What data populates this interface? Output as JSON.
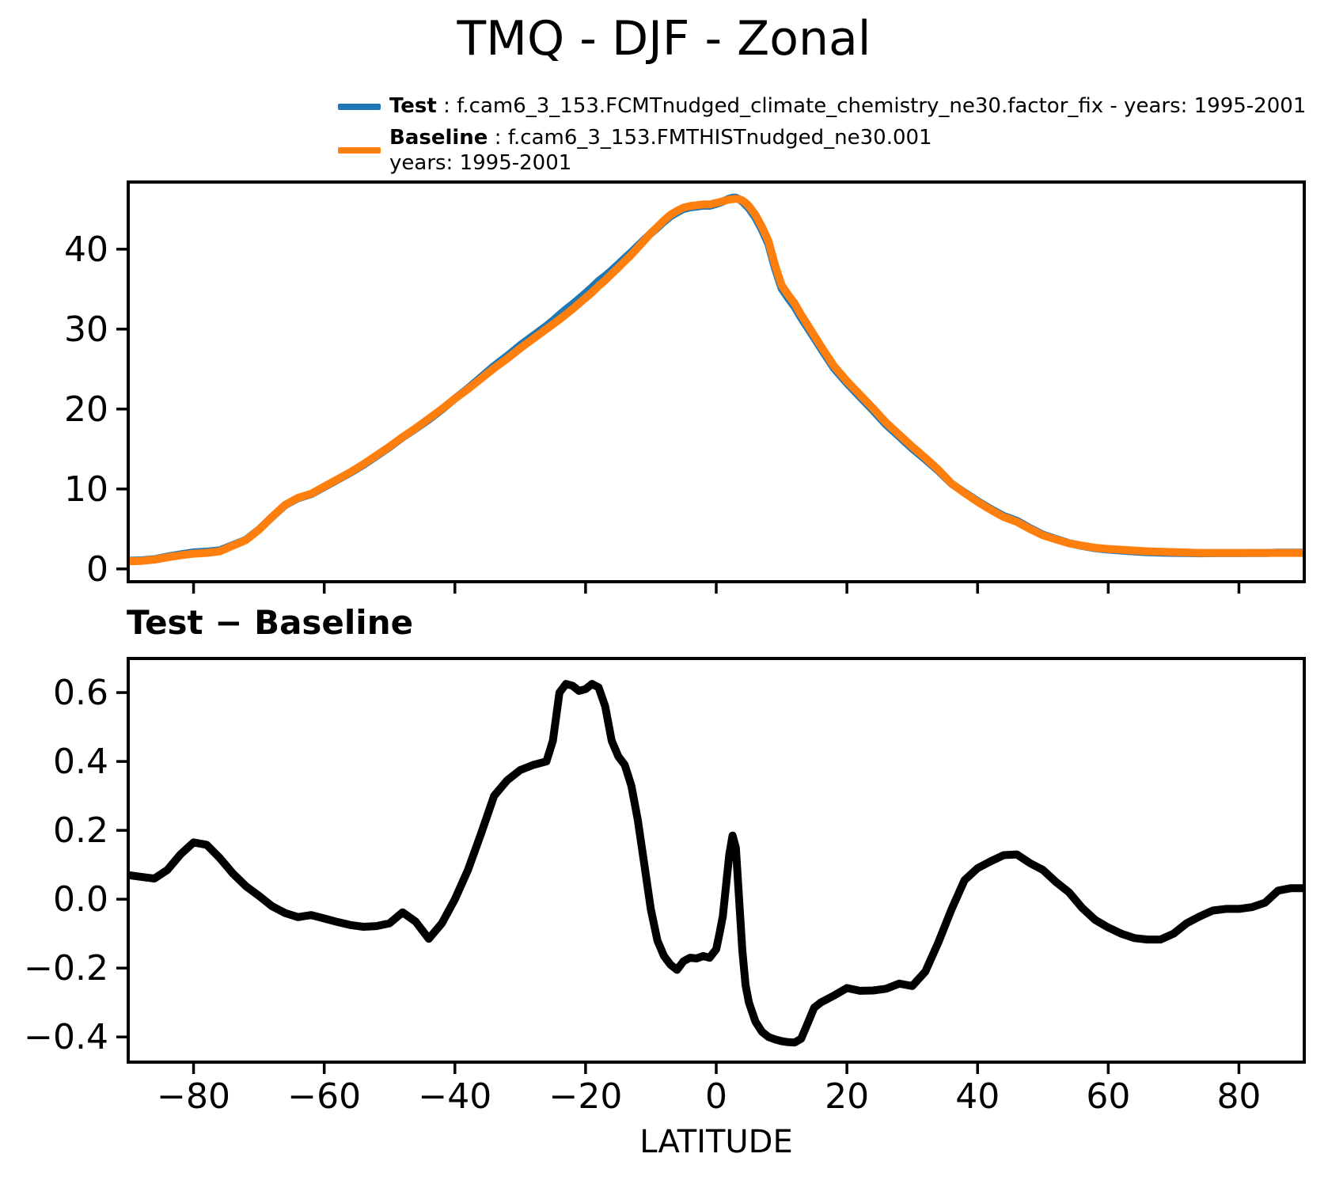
{
  "title": "TMQ - DJF - Zonal",
  "legend": {
    "test": {
      "name": "Test",
      "desc": ": f.cam6_3_153.FCMTnudged_climate_chemistry_ne30.factor_fix - years: 1995-2001",
      "color": "#1f77b4"
    },
    "baseline": {
      "name": "Baseline",
      "desc": ": f.cam6_3_153.FMTHISTnudged_ne30.001",
      "desc2": "years: 1995-2001",
      "color": "#ff7f0e"
    }
  },
  "chart_data": [
    {
      "type": "line",
      "title": "TMQ - DJF - Zonal",
      "ylabel": "",
      "xlabel": "",
      "xlim": [
        -90,
        90
      ],
      "ylim": [
        -1.6,
        48.4
      ],
      "xticks": [
        -80,
        -60,
        -40,
        -20,
        0,
        20,
        40,
        60,
        80
      ],
      "xtick_labels": [
        "−80",
        "−60",
        "−40",
        "−20",
        "0",
        "20",
        "40",
        "60",
        "80"
      ],
      "show_xtick_labels": false,
      "yticks": [
        0,
        10,
        20,
        30,
        40
      ],
      "ytick_labels": [
        "0",
        "10",
        "20",
        "30",
        "40"
      ],
      "grid": false,
      "legend_position": "above-top-center",
      "x": [
        -90,
        -88,
        -86,
        -84,
        -82,
        -80,
        -78,
        -76,
        -74,
        -72,
        -70,
        -68,
        -66,
        -64,
        -62,
        -60,
        -58,
        -56,
        -54,
        -52,
        -50,
        -48,
        -46,
        -44,
        -42,
        -40,
        -38,
        -36,
        -34,
        -32,
        -30,
        -28,
        -26,
        -25,
        -24,
        -23,
        -22,
        -21,
        -20,
        -19,
        -18,
        -17,
        -16,
        -15,
        -14,
        -13,
        -12,
        -11,
        -10,
        -9,
        -8,
        -7,
        -6,
        -5,
        -4,
        -3,
        -2,
        -1,
        0,
        0.5,
        1,
        1.5,
        2,
        2.5,
        3,
        3.5,
        4,
        4.5,
        5,
        6,
        7,
        8,
        9,
        10,
        11,
        12,
        13,
        14,
        15,
        16,
        18,
        20,
        22,
        24,
        26,
        28,
        30,
        32,
        34,
        36,
        38,
        40,
        42,
        44,
        46,
        48,
        50,
        52,
        54,
        56,
        58,
        60,
        62,
        64,
        66,
        68,
        70,
        72,
        74,
        76,
        78,
        80,
        82,
        84,
        86,
        88,
        90
      ],
      "series": [
        {
          "name": "Test",
          "color": "#1f77b4",
          "values": [
            1.02,
            1.07,
            1.21,
            1.54,
            1.83,
            2.07,
            2.16,
            2.32,
            2.98,
            3.64,
            4.91,
            6.48,
            7.96,
            8.85,
            9.35,
            10.24,
            11.13,
            12.03,
            13.02,
            14.12,
            15.23,
            16.46,
            17.54,
            18.69,
            19.93,
            21.3,
            22.59,
            23.99,
            25.4,
            26.65,
            27.98,
            29.19,
            30.4,
            31.06,
            31.8,
            32.48,
            33.12,
            33.81,
            34.51,
            35.23,
            36.02,
            36.66,
            37.36,
            38.12,
            38.89,
            39.63,
            40.43,
            41.2,
            41.97,
            42.68,
            43.44,
            44.11,
            44.6,
            45.02,
            45.23,
            45.33,
            45.44,
            45.43,
            45.66,
            45.8,
            45.95,
            46.14,
            46.33,
            46.44,
            46.45,
            46.25,
            45.95,
            45.55,
            45.1,
            43.95,
            42.42,
            40.6,
            37.59,
            35.09,
            33.89,
            32.78,
            31.4,
            30.14,
            28.89,
            27.6,
            25.12,
            23.24,
            21.53,
            19.84,
            18.04,
            16.56,
            15.05,
            13.69,
            12.28,
            10.67,
            9.56,
            8.49,
            7.51,
            6.63,
            6.03,
            5.11,
            4.29,
            3.75,
            3.22,
            2.88,
            2.59,
            2.42,
            2.3,
            2.19,
            2.08,
            2.03,
            2.0,
            1.98,
            1.95,
            1.97,
            1.97,
            1.97,
            1.98,
            1.99,
            2.03,
            2.03,
            2.03
          ]
        },
        {
          "name": "Baseline",
          "color": "#ff7f0e",
          "values": [
            0.95,
            1.0,
            1.15,
            1.45,
            1.7,
            1.9,
            2.0,
            2.2,
            2.9,
            3.6,
            4.9,
            6.5,
            8.0,
            8.9,
            9.4,
            10.3,
            11.2,
            12.1,
            13.1,
            14.2,
            15.3,
            16.5,
            17.6,
            18.8,
            20.0,
            21.3,
            22.5,
            23.8,
            25.1,
            26.3,
            27.6,
            28.8,
            30.0,
            30.6,
            31.2,
            31.85,
            32.5,
            33.2,
            33.9,
            34.6,
            35.4,
            36.1,
            36.9,
            37.7,
            38.5,
            39.3,
            40.2,
            41.1,
            42.0,
            42.8,
            43.6,
            44.3,
            44.8,
            45.2,
            45.4,
            45.5,
            45.6,
            45.6,
            45.8,
            45.9,
            46.0,
            46.1,
            46.2,
            46.25,
            46.3,
            46.25,
            46.1,
            45.8,
            45.4,
            44.3,
            42.8,
            41.0,
            38.0,
            35.5,
            34.3,
            33.2,
            31.8,
            30.5,
            29.2,
            27.9,
            25.4,
            23.5,
            21.8,
            20.1,
            18.3,
            16.8,
            15.3,
            13.9,
            12.4,
            10.7,
            9.5,
            8.4,
            7.4,
            6.5,
            5.9,
            5.0,
            4.2,
            3.7,
            3.2,
            2.9,
            2.65,
            2.5,
            2.4,
            2.3,
            2.2,
            2.15,
            2.1,
            2.05,
            2.0,
            2.0,
            2.0,
            2.0,
            2.0,
            2.0,
            2.0,
            2.0,
            2.0
          ]
        }
      ]
    },
    {
      "type": "line",
      "title": "Test − Baseline",
      "xlabel": "LATITUDE",
      "ylabel": "",
      "xlim": [
        -90,
        90
      ],
      "ylim": [
        -0.473,
        0.699
      ],
      "xticks": [
        -80,
        -60,
        -40,
        -20,
        0,
        20,
        40,
        60,
        80
      ],
      "xtick_labels": [
        "−80",
        "−60",
        "−40",
        "−20",
        "0",
        "20",
        "40",
        "60",
        "80"
      ],
      "show_xtick_labels": true,
      "yticks": [
        0.6,
        0.4,
        0.2,
        0.0,
        -0.2,
        -0.4
      ],
      "ytick_labels": [
        "0.6",
        "0.4",
        "0.2",
        "0.0",
        "−0.2",
        "−0.4"
      ],
      "grid": false,
      "x": [
        -90,
        -88,
        -86,
        -84,
        -82,
        -80,
        -78,
        -76,
        -74,
        -72,
        -70,
        -68,
        -66,
        -64,
        -62,
        -60,
        -58,
        -56,
        -54,
        -52,
        -50,
        -48,
        -46,
        -44,
        -42,
        -40,
        -38,
        -36,
        -34,
        -32,
        -30,
        -28,
        -26,
        -25,
        -24,
        -23,
        -22,
        -21,
        -20,
        -19,
        -18,
        -17,
        -16,
        -15,
        -14,
        -13,
        -12,
        -11,
        -10,
        -9,
        -8,
        -7,
        -6,
        -5,
        -4,
        -3,
        -2,
        -1,
        0,
        0.5,
        1,
        1.5,
        2,
        2.5,
        3,
        3.5,
        4,
        4.5,
        5,
        6,
        7,
        8,
        9,
        10,
        11,
        12,
        13,
        14,
        15,
        16,
        18,
        20,
        22,
        24,
        26,
        28,
        30,
        32,
        34,
        36,
        38,
        40,
        42,
        44,
        46,
        48,
        50,
        52,
        54,
        56,
        58,
        60,
        62,
        64,
        66,
        68,
        70,
        72,
        74,
        76,
        78,
        80,
        82,
        84,
        86,
        88,
        90
      ],
      "series": [
        {
          "name": "Test - Baseline",
          "color": "#000000",
          "values": [
            0.07,
            0.065,
            0.06,
            0.085,
            0.13,
            0.165,
            0.158,
            0.12,
            0.075,
            0.038,
            0.01,
            -0.02,
            -0.04,
            -0.052,
            -0.046,
            -0.056,
            -0.066,
            -0.075,
            -0.08,
            -0.078,
            -0.07,
            -0.038,
            -0.065,
            -0.115,
            -0.07,
            0.0,
            0.085,
            0.19,
            0.3,
            0.345,
            0.375,
            0.39,
            0.4,
            0.46,
            0.6,
            0.625,
            0.62,
            0.605,
            0.61,
            0.625,
            0.615,
            0.56,
            0.46,
            0.415,
            0.39,
            0.33,
            0.23,
            0.1,
            -0.03,
            -0.12,
            -0.165,
            -0.19,
            -0.205,
            -0.18,
            -0.17,
            -0.172,
            -0.165,
            -0.17,
            -0.145,
            -0.1,
            -0.05,
            0.04,
            0.13,
            0.185,
            0.15,
            0.0,
            -0.15,
            -0.25,
            -0.3,
            -0.355,
            -0.385,
            -0.4,
            -0.407,
            -0.412,
            -0.415,
            -0.416,
            -0.405,
            -0.36,
            -0.315,
            -0.3,
            -0.28,
            -0.258,
            -0.266,
            -0.265,
            -0.26,
            -0.245,
            -0.252,
            -0.21,
            -0.125,
            -0.03,
            0.055,
            0.09,
            0.11,
            0.128,
            0.13,
            0.105,
            0.085,
            0.05,
            0.02,
            -0.025,
            -0.06,
            -0.082,
            -0.1,
            -0.113,
            -0.117,
            -0.117,
            -0.1,
            -0.07,
            -0.05,
            -0.033,
            -0.028,
            -0.028,
            -0.023,
            -0.01,
            0.025,
            0.032,
            0.032
          ]
        }
      ]
    }
  ]
}
